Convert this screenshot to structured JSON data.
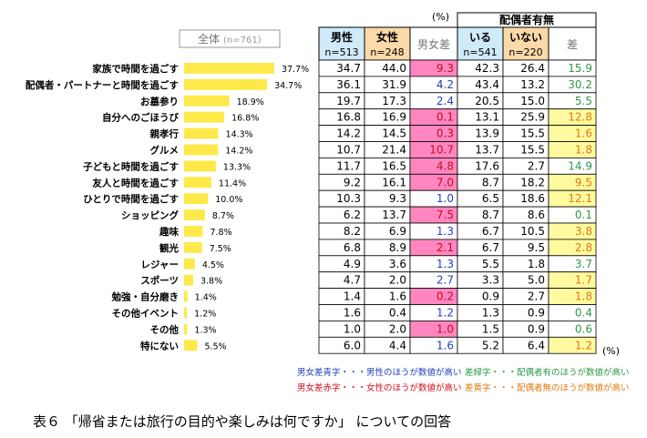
{
  "caption": "表６ 「帰省または旅行の目的や楽しみは何ですか」 についての回答",
  "percent_unit": "(%)",
  "header": {
    "total": "全体",
    "total_n": "(n=761)",
    "spouse_group": "配偶者有無",
    "male": "男性",
    "male_n": "n=513",
    "female": "女性",
    "female_n": "n=248",
    "gender_diff": "男女差",
    "with_spouse": "いる",
    "with_spouse_n": "n=541",
    "no_spouse": "いない",
    "no_spouse_n": "n=220",
    "spouse_diff": "差"
  },
  "legend": [
    {
      "text": "男女差青字・・・男性のほうが数値が高い",
      "color": "#1f3fbf"
    },
    {
      "text": "差緑字・・・配偶者有のほうが数値が高い",
      "color": "#2e9a4a"
    },
    {
      "text": "男女差赤字・・・女性のほうが数値が高い",
      "color": "#d0101a"
    },
    {
      "text": "差黄字・・・配偶者無のほうが数値が高い",
      "color": "#e07a10"
    }
  ],
  "colors": {
    "bar": "#ffe94a",
    "header_blue": "#cfeaf8",
    "header_orange": "#fbd9a8",
    "pink_cell": "#ff86c0",
    "yellow_cell": "#fff9a0",
    "blue_text": "#1f3fbf",
    "red_text": "#c0101a",
    "green_text": "#2e9a4a",
    "orange_text": "#e07a10"
  },
  "chart_data": {
    "type": "bar",
    "orientation": "horizontal",
    "categories": [
      "家族で時間を過ごす",
      "配偶者・パートナーと時間を過ごす",
      "お墓参り",
      "自分へのごほうび",
      "親孝行",
      "グルメ",
      "子どもと時間を過ごす",
      "友人と時間を過ごす",
      "ひとりで時間を過ごす",
      "ショッピング",
      "趣味",
      "観光",
      "レジャー",
      "スポーツ",
      "勉強・自分磨き",
      "その他イベント",
      "その他",
      "特にない"
    ],
    "series": [
      {
        "name": "全体",
        "values": [
          37.7,
          34.7,
          18.9,
          16.8,
          14.3,
          14.2,
          13.3,
          11.4,
          10.0,
          8.7,
          7.8,
          7.5,
          4.5,
          3.8,
          1.4,
          1.2,
          1.3,
          5.5
        ]
      }
    ],
    "value_labels": [
      "37.7%",
      "34.7%",
      "18.9%",
      "16.8%",
      "14.3%",
      "14.2%",
      "13.3%",
      "11.4%",
      "10.0%",
      "8.7%",
      "7.8%",
      "7.5%",
      "4.5%",
      "3.8%",
      "1.4%",
      "1.2%",
      "1.3%",
      "5.5%"
    ],
    "xlim": [
      0,
      40
    ],
    "table": {
      "columns": [
        "男性",
        "女性",
        "男女差",
        "いる",
        "いない",
        "差"
      ],
      "rows": [
        [
          "34.7",
          "44.0",
          "9.3",
          "42.3",
          "26.4",
          "15.9"
        ],
        [
          "36.1",
          "31.9",
          "4.2",
          "43.4",
          "13.2",
          "30.2"
        ],
        [
          "19.7",
          "17.3",
          "2.4",
          "20.5",
          "15.0",
          "5.5"
        ],
        [
          "16.8",
          "16.9",
          "0.1",
          "13.1",
          "25.9",
          "12.8"
        ],
        [
          "14.2",
          "14.5",
          "0.3",
          "13.9",
          "15.5",
          "1.6"
        ],
        [
          "10.7",
          "21.4",
          "10.7",
          "13.7",
          "15.5",
          "1.8"
        ],
        [
          "11.7",
          "16.5",
          "4.8",
          "17.6",
          "2.7",
          "14.9"
        ],
        [
          "9.2",
          "16.1",
          "7.0",
          "8.7",
          "18.2",
          "9.5"
        ],
        [
          "10.3",
          "9.3",
          "1.0",
          "6.5",
          "18.6",
          "12.1"
        ],
        [
          "6.2",
          "13.7",
          "7.5",
          "8.7",
          "8.6",
          "0.1"
        ],
        [
          "8.2",
          "6.9",
          "1.3",
          "6.7",
          "10.5",
          "3.8"
        ],
        [
          "6.8",
          "8.9",
          "2.1",
          "6.7",
          "9.5",
          "2.8"
        ],
        [
          "4.9",
          "3.6",
          "1.3",
          "5.5",
          "1.8",
          "3.7"
        ],
        [
          "4.7",
          "2.0",
          "2.7",
          "3.3",
          "5.0",
          "1.7"
        ],
        [
          "1.4",
          "1.6",
          "0.2",
          "0.9",
          "2.7",
          "1.8"
        ],
        [
          "1.6",
          "0.4",
          "1.2",
          "1.3",
          "0.9",
          "0.4"
        ],
        [
          "1.0",
          "2.0",
          "1.0",
          "1.5",
          "0.9",
          "0.6"
        ],
        [
          "6.0",
          "4.4",
          "1.6",
          "5.2",
          "6.4",
          "1.2"
        ]
      ],
      "gender_diff_higher": [
        "female",
        "male",
        "male",
        "female",
        "female",
        "female",
        "female",
        "female",
        "male",
        "female",
        "male",
        "female",
        "male",
        "male",
        "female",
        "male",
        "female",
        "male"
      ],
      "spouse_diff_higher": [
        "with",
        "with",
        "with",
        "without",
        "without",
        "without",
        "with",
        "without",
        "without",
        "with",
        "without",
        "without",
        "with",
        "without",
        "without",
        "with",
        "with",
        "without"
      ]
    }
  }
}
